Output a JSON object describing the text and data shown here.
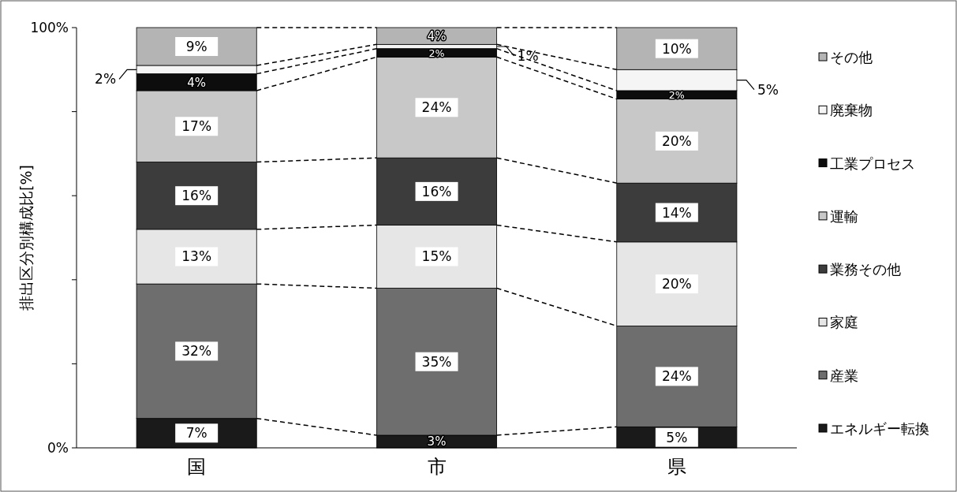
{
  "chart_data": {
    "type": "bar",
    "stacked": true,
    "ylabel": "排出区分別構成比[%]",
    "categories": [
      "国",
      "市",
      "県"
    ],
    "ylim": [
      0,
      100
    ],
    "yticks": [
      {
        "value": 0,
        "label": "0%"
      },
      {
        "value": 20,
        "label": null
      },
      {
        "value": 40,
        "label": null
      },
      {
        "value": 60,
        "label": null
      },
      {
        "value": 80,
        "label": null
      },
      {
        "value": 100,
        "label": "100%"
      }
    ],
    "grid": false,
    "legend": "right",
    "series": [
      {
        "name": "エネルギー転換",
        "color": "#1a1a1a",
        "values": [
          7,
          3,
          5
        ],
        "value_labels": [
          "7%",
          "3%",
          "5%"
        ]
      },
      {
        "name": "産業",
        "color": "#6e6e6e",
        "values": [
          32,
          35,
          24
        ],
        "value_labels": [
          "32%",
          "35%",
          "24%"
        ]
      },
      {
        "name": "家庭",
        "color": "#e6e6e6",
        "values": [
          13,
          15,
          20
        ],
        "value_labels": [
          "13%",
          "15%",
          "20%"
        ]
      },
      {
        "name": "業務その他",
        "color": "#3c3c3c",
        "values": [
          16,
          16,
          14
        ],
        "value_labels": [
          "16%",
          "16%",
          "14%"
        ]
      },
      {
        "name": "運輸",
        "color": "#c8c8c8",
        "values": [
          17,
          24,
          20
        ],
        "value_labels": [
          "17%",
          "24%",
          "20%"
        ]
      },
      {
        "name": "工業プロセス",
        "color": "#0d0d0d",
        "values": [
          4,
          2,
          2
        ],
        "value_labels": [
          "4%",
          "2%",
          "2%"
        ]
      },
      {
        "name": "廃棄物",
        "color": "#f5f5f5",
        "values": [
          2,
          1,
          5
        ],
        "value_labels": [
          "2%",
          "1%",
          "5%"
        ]
      },
      {
        "name": "その他",
        "color": "#b4b4b4",
        "values": [
          9,
          4,
          10
        ],
        "value_labels": [
          "9%",
          "4%",
          "10%"
        ]
      }
    ]
  }
}
